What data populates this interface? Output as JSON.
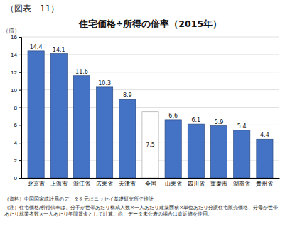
{
  "chart_data": {
    "type": "bar",
    "header": "（図表－11）",
    "title": "住宅価格÷所得の倍率（2015年）",
    "ylabel": "（倍）",
    "categories": [
      "北京市",
      "上海市",
      "浙江省",
      "広東省",
      "天津市",
      "全国",
      "山東省",
      "四川省",
      "重慶市",
      "湖南省",
      "貴州省"
    ],
    "values": [
      14.4,
      14.1,
      11.6,
      10.3,
      8.9,
      7.5,
      6.6,
      6.1,
      5.9,
      5.4,
      4.4
    ],
    "colors": [
      "#4472c4",
      "#4472c4",
      "#4472c4",
      "#4472c4",
      "#4472c4",
      "#ffffff",
      "#4472c4",
      "#4472c4",
      "#4472c4",
      "#4472c4",
      "#4472c4"
    ],
    "ylim": [
      0,
      16
    ],
    "yticks": [
      0,
      2,
      4,
      6,
      8,
      10,
      12,
      14,
      16
    ],
    "grid": true,
    "data_labels": true,
    "notes": [
      "（資料）中国国家統計局のデータを元にニッセイ基礎研究所で推計",
      "（注）住宅価格/所得倍率は、分子が世帯あたり構成人数×一人あたり建築面積×単位あたり分譲住宅販売価格、分母が世帯あたり就業者数×一人あたり年間賃金として計算。尚、データ未公表の場合は直近値を使用。"
    ]
  }
}
